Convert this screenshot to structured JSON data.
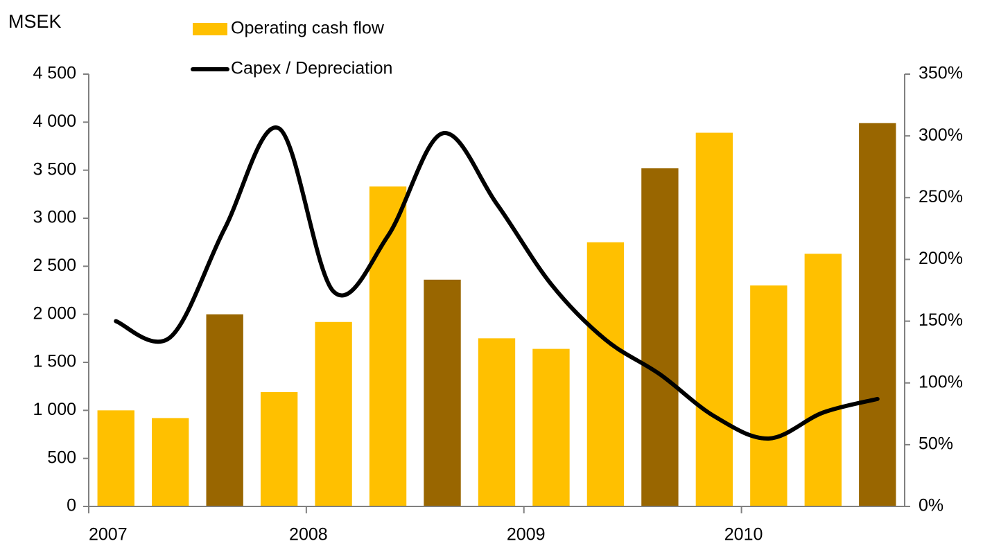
{
  "chart_data": {
    "type": "bar_line",
    "y_axis_label": "MSEK",
    "categories": [
      "2007",
      null,
      null,
      null,
      "2008",
      null,
      null,
      null,
      "2009",
      null,
      null,
      null,
      "2010",
      null,
      null
    ],
    "series": [
      {
        "name": "Operating cash flow",
        "type": "bar",
        "color": "#FFC000",
        "colors": [
          "#FFC000",
          "#FFC000",
          "#996600",
          "#FFC000",
          "#FFC000",
          "#FFC000",
          "#996600",
          "#FFC000",
          "#FFC000",
          "#FFC000",
          "#996600",
          "#FFC000",
          "#FFC000",
          "#FFC000",
          "#996600"
        ],
        "values": [
          1000,
          920,
          2000,
          1190,
          1920,
          3330,
          2360,
          1750,
          1640,
          2750,
          3520,
          3890,
          2300,
          2630,
          3990
        ]
      },
      {
        "name": "Capex / Depreciation",
        "type": "line",
        "axis": "y2",
        "color": "#000000",
        "values": [
          150,
          137,
          225,
          306,
          174,
          219,
          302,
          245,
          180,
          135,
          107,
          73,
          55,
          76,
          87
        ]
      }
    ],
    "ylim": [
      0,
      4500
    ],
    "yticks": [
      0,
      500,
      {
        "value": 1000,
        "label": "1 000"
      },
      {
        "value": 1500,
        "label": "1 500"
      },
      {
        "value": 2000,
        "label": "2 000"
      },
      {
        "value": 2500,
        "label": "2 500"
      },
      {
        "value": 3000,
        "label": "3 000"
      },
      {
        "value": 3500,
        "label": "3 500"
      },
      {
        "value": 4000,
        "label": "4 000"
      },
      {
        "value": 4500,
        "label": "4 500"
      }
    ],
    "y2lim": [
      0,
      350
    ],
    "y2ticks": [
      {
        "value": 0,
        "label": "0%"
      },
      {
        "value": 50,
        "label": "50%"
      },
      {
        "value": 100,
        "label": "100%"
      },
      {
        "value": 150,
        "label": "150%"
      },
      {
        "value": 200,
        "label": "200%"
      },
      {
        "value": 250,
        "label": "250%"
      },
      {
        "value": 300,
        "label": "300%"
      },
      {
        "value": 350,
        "label": "350%"
      }
    ],
    "grid": false
  }
}
